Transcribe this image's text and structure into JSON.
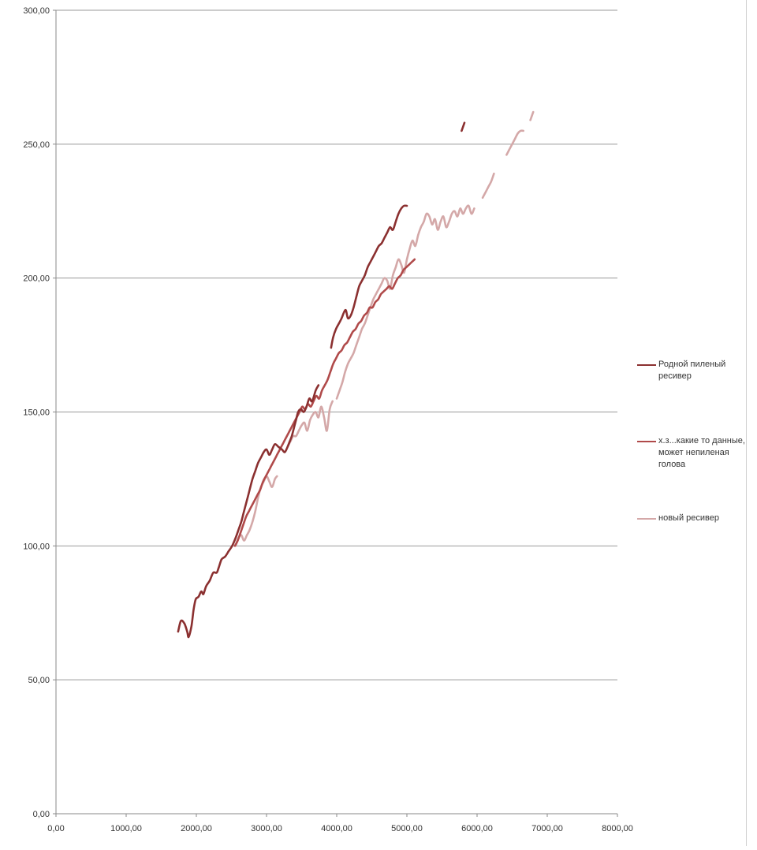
{
  "chart_data": {
    "type": "line",
    "xlim": [
      0,
      8000
    ],
    "ylim": [
      0,
      300
    ],
    "x_ticks": [
      "0,00",
      "1000,00",
      "2000,00",
      "3000,00",
      "4000,00",
      "5000,00",
      "6000,00",
      "7000,00",
      "8000,00"
    ],
    "y_ticks": [
      "0,00",
      "50,00",
      "100,00",
      "150,00",
      "200,00",
      "250,00",
      "300,00"
    ],
    "grid": "horizontal",
    "legend_position": "right",
    "series": [
      {
        "name": "Родной пиленый ресивер",
        "color": "#8b3030",
        "segments": [
          [
            [
              1740,
              68
            ],
            [
              1780,
              72
            ],
            [
              1830,
              71
            ],
            [
              1870,
              68
            ],
            [
              1890,
              66
            ],
            [
              1930,
              70
            ],
            [
              1960,
              76
            ],
            [
              1990,
              80
            ],
            [
              2030,
              81
            ],
            [
              2070,
              83
            ],
            [
              2100,
              82
            ],
            [
              2140,
              85
            ],
            [
              2190,
              87
            ],
            [
              2240,
              90
            ],
            [
              2290,
              90
            ],
            [
              2320,
              92
            ],
            [
              2360,
              95
            ],
            [
              2410,
              96
            ],
            [
              2460,
              98
            ],
            [
              2510,
              100
            ],
            [
              2560,
              103
            ],
            [
              2600,
              106
            ],
            [
              2640,
              109
            ],
            [
              2680,
              113
            ],
            [
              2720,
              117
            ],
            [
              2760,
              121
            ],
            [
              2800,
              125
            ],
            [
              2840,
              128
            ],
            [
              2880,
              131
            ],
            [
              2920,
              133
            ],
            [
              2960,
              135
            ],
            [
              3000,
              136
            ],
            [
              3040,
              134
            ],
            [
              3080,
              136
            ],
            [
              3120,
              138
            ],
            [
              3170,
              137
            ],
            [
              3220,
              136
            ],
            [
              3260,
              135
            ],
            [
              3300,
              137
            ],
            [
              3330,
              139
            ],
            [
              3360,
              141
            ],
            [
              3390,
              144
            ],
            [
              3420,
              147
            ],
            [
              3450,
              150
            ],
            [
              3490,
              151
            ],
            [
              3530,
              150
            ],
            [
              3570,
              152
            ],
            [
              3610,
              155
            ],
            [
              3650,
              154
            ],
            [
              3700,
              158
            ],
            [
              3740,
              160
            ]
          ],
          [
            [
              3920,
              174
            ],
            [
              3950,
              178
            ],
            [
              3990,
              181
            ],
            [
              4030,
              183
            ],
            [
              4070,
              185
            ],
            [
              4100,
              187
            ],
            [
              4130,
              188
            ],
            [
              4160,
              185
            ],
            [
              4200,
              186
            ],
            [
              4240,
              189
            ],
            [
              4280,
              193
            ],
            [
              4320,
              197
            ],
            [
              4360,
              199
            ],
            [
              4400,
              201
            ],
            [
              4440,
              204
            ],
            [
              4480,
              206
            ],
            [
              4520,
              208
            ],
            [
              4560,
              210
            ],
            [
              4600,
              212
            ],
            [
              4640,
              213
            ],
            [
              4680,
              215
            ],
            [
              4720,
              217
            ],
            [
              4760,
              219
            ],
            [
              4800,
              218
            ],
            [
              4840,
              221
            ],
            [
              4880,
              224
            ],
            [
              4920,
              226
            ],
            [
              4960,
              227
            ],
            [
              5000,
              227
            ]
          ],
          [
            [
              5780,
              255
            ],
            [
              5820,
              258
            ]
          ]
        ]
      },
      {
        "name": "х.з...какие то данные, может непиленая голова",
        "color": "#b04a4a",
        "segments": [
          [
            [
              2550,
              100
            ],
            [
              2590,
              102
            ],
            [
              2630,
              105
            ],
            [
              2670,
              108
            ],
            [
              2710,
              111
            ],
            [
              2750,
              113
            ],
            [
              2790,
              115
            ],
            [
              2830,
              117
            ],
            [
              2870,
              119
            ],
            [
              2910,
              121
            ],
            [
              2950,
              124
            ],
            [
              2990,
              126
            ],
            [
              3030,
              128
            ],
            [
              3070,
              130
            ],
            [
              3110,
              132
            ],
            [
              3150,
              134
            ],
            [
              3190,
              136
            ],
            [
              3230,
              138
            ],
            [
              3270,
              140
            ],
            [
              3310,
              142
            ],
            [
              3350,
              144
            ],
            [
              3390,
              146
            ],
            [
              3430,
              148
            ],
            [
              3470,
              150
            ],
            [
              3510,
              152
            ],
            [
              3550,
              151
            ],
            [
              3590,
              153
            ],
            [
              3630,
              152
            ],
            [
              3670,
              154
            ],
            [
              3710,
              156
            ],
            [
              3750,
              155
            ],
            [
              3790,
              158
            ],
            [
              3830,
              160
            ],
            [
              3870,
              162
            ],
            [
              3910,
              165
            ],
            [
              3950,
              168
            ],
            [
              3990,
              170
            ],
            [
              4030,
              172
            ],
            [
              4070,
              173
            ],
            [
              4110,
              175
            ],
            [
              4150,
              176
            ],
            [
              4190,
              178
            ],
            [
              4230,
              180
            ],
            [
              4270,
              181
            ],
            [
              4310,
              183
            ],
            [
              4350,
              184
            ],
            [
              4390,
              186
            ],
            [
              4430,
              187
            ],
            [
              4470,
              189
            ],
            [
              4510,
              189
            ],
            [
              4550,
              191
            ],
            [
              4590,
              192
            ],
            [
              4630,
              194
            ],
            [
              4670,
              195
            ],
            [
              4710,
              196
            ],
            [
              4750,
              197
            ],
            [
              4790,
              196
            ],
            [
              4830,
              198
            ],
            [
              4870,
              200
            ],
            [
              4910,
              201
            ],
            [
              4950,
              203
            ],
            [
              4990,
              204
            ],
            [
              5030,
              205
            ],
            [
              5070,
              206
            ],
            [
              5110,
              207
            ]
          ]
        ]
      },
      {
        "name": "новый ресивер",
        "color": "#d4a8a8",
        "segments": [
          [
            [
              2560,
              100
            ],
            [
              2600,
              103
            ],
            [
              2640,
              104
            ],
            [
              2680,
              102
            ],
            [
              2720,
              104
            ],
            [
              2760,
              106
            ],
            [
              2800,
              109
            ],
            [
              2840,
              113
            ],
            [
              2880,
              118
            ],
            [
              2920,
              122
            ],
            [
              2960,
              124
            ],
            [
              3000,
              126
            ],
            [
              3040,
              124
            ],
            [
              3080,
              122
            ],
            [
              3120,
              125
            ],
            [
              3150,
              126
            ]
          ],
          [
            [
              3300,
              137
            ],
            [
              3340,
              139
            ],
            [
              3380,
              141
            ],
            [
              3420,
              141
            ],
            [
              3460,
              143
            ],
            [
              3500,
              145
            ],
            [
              3540,
              146
            ],
            [
              3580,
              143
            ],
            [
              3620,
              147
            ],
            [
              3660,
              149
            ],
            [
              3700,
              150
            ],
            [
              3740,
              148
            ],
            [
              3780,
              152
            ],
            [
              3820,
              148
            ],
            [
              3860,
              143
            ],
            [
              3900,
              151
            ],
            [
              3940,
              154
            ]
          ],
          [
            [
              4000,
              155
            ],
            [
              4040,
              158
            ],
            [
              4080,
              161
            ],
            [
              4120,
              165
            ],
            [
              4160,
              168
            ],
            [
              4200,
              170
            ],
            [
              4240,
              172
            ],
            [
              4280,
              175
            ],
            [
              4320,
              178
            ],
            [
              4360,
              181
            ],
            [
              4400,
              183
            ],
            [
              4440,
              186
            ],
            [
              4480,
              189
            ],
            [
              4520,
              192
            ],
            [
              4560,
              194
            ],
            [
              4600,
              196
            ],
            [
              4640,
              198
            ],
            [
              4680,
              200
            ],
            [
              4720,
              199
            ],
            [
              4760,
              196
            ],
            [
              4800,
              201
            ],
            [
              4840,
              204
            ],
            [
              4880,
              207
            ],
            [
              4920,
              205
            ],
            [
              4960,
              202
            ],
            [
              5000,
              207
            ],
            [
              5040,
              211
            ],
            [
              5080,
              214
            ],
            [
              5120,
              212
            ],
            [
              5160,
              216
            ],
            [
              5200,
              219
            ],
            [
              5240,
              221
            ],
            [
              5280,
              224
            ],
            [
              5320,
              223
            ],
            [
              5360,
              220
            ],
            [
              5400,
              222
            ],
            [
              5440,
              218
            ],
            [
              5480,
              221
            ],
            [
              5520,
              223
            ],
            [
              5560,
              219
            ],
            [
              5600,
              221
            ],
            [
              5640,
              224
            ],
            [
              5680,
              225
            ],
            [
              5720,
              223
            ],
            [
              5760,
              226
            ],
            [
              5800,
              224
            ],
            [
              5840,
              226
            ],
            [
              5880,
              227
            ],
            [
              5920,
              224
            ],
            [
              5960,
              226
            ]
          ],
          [
            [
              6080,
              230
            ],
            [
              6120,
              232
            ],
            [
              6160,
              234
            ],
            [
              6200,
              236
            ],
            [
              6240,
              239
            ]
          ],
          [
            [
              6420,
              246
            ],
            [
              6460,
              248
            ],
            [
              6500,
              250
            ],
            [
              6540,
              252
            ],
            [
              6580,
              254
            ],
            [
              6620,
              255
            ],
            [
              6660,
              255
            ]
          ],
          [
            [
              6760,
              259
            ],
            [
              6800,
              262
            ]
          ]
        ]
      }
    ]
  }
}
